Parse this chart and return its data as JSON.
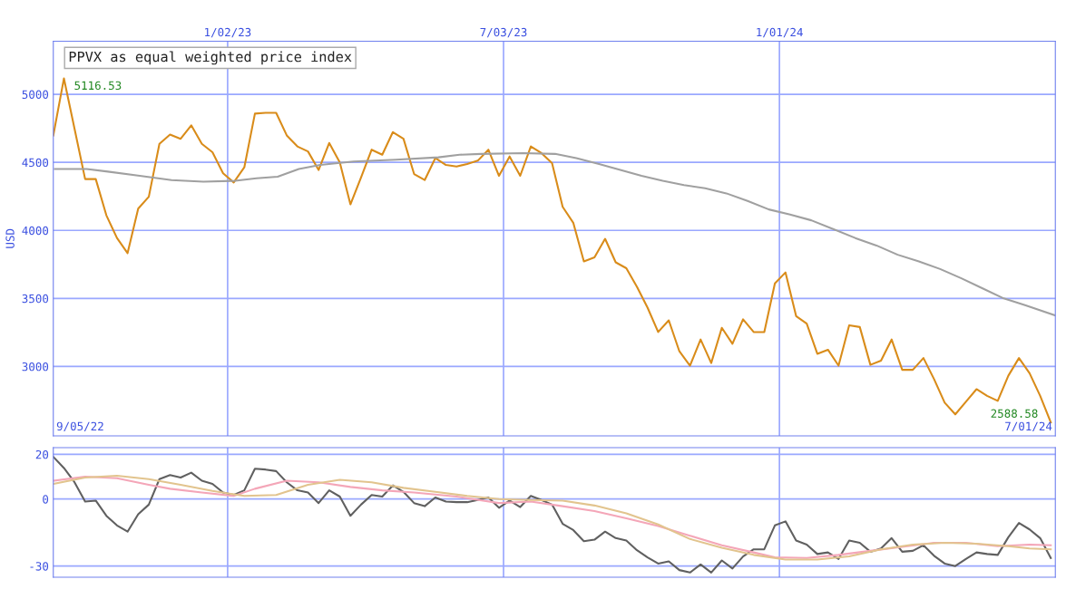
{
  "chart_data": [
    {
      "type": "line",
      "title": "PPVX as equal weighted price index",
      "ylabel": "USD",
      "xlim": [
        "2022-09-09",
        "2024-07-01"
      ],
      "ylim": [
        2490,
        5390
      ],
      "xticks": [
        {
          "value": "2023-01-02",
          "label": "1/02/23"
        },
        {
          "value": "2023-07-03",
          "label": "7/03/23"
        },
        {
          "value": "2024-01-01",
          "label": "1/01/24"
        }
      ],
      "yticks": [
        3000,
        3500,
        4000,
        4500,
        5000
      ],
      "grid": true,
      "annotations": [
        "9/05/22",
        "7/01/24",
        {
          "text": "5116.53",
          "x": "2022-09-16",
          "y": 5116.53
        },
        {
          "text": "2588.58",
          "x": "2024-06-28",
          "y": 2588.58
        }
      ],
      "series": [
        {
          "color": "#d98c1a",
          "x": [
            "2022-09-09",
            "2022-09-16",
            "2022-09-23",
            "2022-09-30",
            "2022-10-07",
            "2022-10-14",
            "2022-10-21",
            "2022-10-28",
            "2022-11-04",
            "2022-11-11",
            "2022-11-18",
            "2022-11-25",
            "2022-12-02",
            "2022-12-09",
            "2022-12-16",
            "2022-12-23",
            "2022-12-30",
            "2023-01-06",
            "2023-01-13",
            "2023-01-20",
            "2023-01-27",
            "2023-02-03",
            "2023-02-10",
            "2023-02-17",
            "2023-02-24",
            "2023-03-03",
            "2023-03-10",
            "2023-03-17",
            "2023-03-24",
            "2023-03-31",
            "2023-04-07",
            "2023-04-14",
            "2023-04-21",
            "2023-04-28",
            "2023-05-05",
            "2023-05-12",
            "2023-05-19",
            "2023-05-26",
            "2023-06-02",
            "2023-06-09",
            "2023-06-16",
            "2023-06-23",
            "2023-06-30",
            "2023-07-07",
            "2023-07-14",
            "2023-07-21",
            "2023-07-28",
            "2023-08-04",
            "2023-08-11",
            "2023-08-18",
            "2023-08-25",
            "2023-09-01",
            "2023-09-08",
            "2023-09-15",
            "2023-09-22",
            "2023-09-29",
            "2023-10-06",
            "2023-10-13",
            "2023-10-20",
            "2023-10-27",
            "2023-11-03",
            "2023-11-10",
            "2023-11-17",
            "2023-11-24",
            "2023-12-01",
            "2023-12-08",
            "2023-12-15",
            "2023-12-22",
            "2023-12-29",
            "2024-01-05",
            "2024-01-12",
            "2024-01-19",
            "2024-01-26",
            "2024-02-02",
            "2024-02-09",
            "2024-02-16",
            "2024-02-23",
            "2024-03-01",
            "2024-03-08",
            "2024-03-15",
            "2024-03-22",
            "2024-03-29",
            "2024-04-05",
            "2024-04-12",
            "2024-04-19",
            "2024-04-26",
            "2024-05-03",
            "2024-05-10",
            "2024-05-17",
            "2024-05-24",
            "2024-05-31",
            "2024-06-07",
            "2024-06-14",
            "2024-06-21",
            "2024-06-28"
          ],
          "values": [
            4698,
            5116.53,
            4747,
            4377,
            4377,
            4111,
            3944,
            3833,
            4160,
            4247,
            4636,
            4704,
            4673,
            4772,
            4636,
            4574,
            4420,
            4352,
            4463,
            4858,
            4864,
            4864,
            4698,
            4617,
            4580,
            4444,
            4642,
            4500,
            4191,
            4389,
            4593,
            4556,
            4722,
            4673,
            4414,
            4370,
            4531,
            4481,
            4469,
            4488,
            4512,
            4593,
            4401,
            4543,
            4401,
            4617,
            4568,
            4494,
            4173,
            4056,
            3772,
            3802,
            3938,
            3765,
            3722,
            3586,
            3432,
            3253,
            3339,
            3111,
            3006,
            3198,
            3025,
            3284,
            3167,
            3346,
            3253,
            3253,
            3611,
            3691,
            3370,
            3315,
            3093,
            3123,
            3006,
            3302,
            3290,
            3012,
            3043,
            3198,
            2975,
            2975,
            3062,
            2907,
            2734,
            2648,
            2741,
            2833,
            2784,
            2747,
            2932,
            3062,
            2950,
            2784,
            2588.58
          ]
        },
        {
          "color": "#a0a0a0",
          "x": [
            "2022-09-10",
            "2022-10-01",
            "2022-10-15",
            "2022-11-05",
            "2022-11-26",
            "2022-12-17",
            "2023-01-07",
            "2023-01-21",
            "2023-02-04",
            "2023-02-18",
            "2023-03-04",
            "2023-03-26",
            "2023-04-23",
            "2023-05-21",
            "2023-06-04",
            "2023-06-18",
            "2023-07-16",
            "2023-08-06",
            "2023-08-20",
            "2023-09-04",
            "2023-09-18",
            "2023-10-02",
            "2023-10-16",
            "2023-10-30",
            "2023-11-13",
            "2023-11-27",
            "2023-12-11",
            "2023-12-25",
            "2024-01-08",
            "2024-01-22",
            "2024-02-05",
            "2024-02-20",
            "2024-03-05",
            "2024-03-19",
            "2024-04-02",
            "2024-04-16",
            "2024-04-30",
            "2024-05-14",
            "2024-05-28",
            "2024-06-11",
            "2024-07-01"
          ],
          "values": [
            4451,
            4451,
            4432,
            4401,
            4370,
            4358,
            4364,
            4383,
            4395,
            4451,
            4481,
            4506,
            4519,
            4537,
            4556,
            4562,
            4568,
            4562,
            4531,
            4488,
            4444,
            4401,
            4364,
            4333,
            4309,
            4272,
            4216,
            4154,
            4117,
            4074,
            4012,
            3944,
            3889,
            3821,
            3772,
            3716,
            3648,
            3574,
            3500,
            3451,
            3375
          ]
        }
      ]
    },
    {
      "type": "line",
      "xlim": [
        "2022-09-09",
        "2024-07-01"
      ],
      "ylim": [
        -35,
        23
      ],
      "xticks": [
        {
          "value": "2023-01-02",
          "label": null
        },
        {
          "value": "2023-07-03",
          "label": null
        },
        {
          "value": "2024-01-01",
          "label": null
        }
      ],
      "yticks": [
        -30,
        0,
        20
      ],
      "tick_labels": "y",
      "grid": true,
      "series": [
        {
          "color": "#606060",
          "x": [
            "2022-09-09",
            "2022-09-16",
            "2022-09-23",
            "2022-09-30",
            "2022-10-07",
            "2022-10-14",
            "2022-10-21",
            "2022-10-28",
            "2022-11-04",
            "2022-11-11",
            "2022-11-18",
            "2022-11-25",
            "2022-12-02",
            "2022-12-09",
            "2022-12-16",
            "2022-12-23",
            "2022-12-30",
            "2023-01-06",
            "2023-01-13",
            "2023-01-20",
            "2023-01-27",
            "2023-02-03",
            "2023-02-10",
            "2023-02-17",
            "2023-02-24",
            "2023-03-03",
            "2023-03-10",
            "2023-03-17",
            "2023-03-24",
            "2023-03-31",
            "2023-04-07",
            "2023-04-14",
            "2023-04-21",
            "2023-04-28",
            "2023-05-05",
            "2023-05-12",
            "2023-05-19",
            "2023-05-26",
            "2023-06-02",
            "2023-06-09",
            "2023-06-16",
            "2023-06-23",
            "2023-06-30",
            "2023-07-07",
            "2023-07-14",
            "2023-07-21",
            "2023-07-28",
            "2023-08-04",
            "2023-08-11",
            "2023-08-18",
            "2023-08-25",
            "2023-09-01",
            "2023-09-08",
            "2023-09-15",
            "2023-09-22",
            "2023-09-29",
            "2023-10-06",
            "2023-10-13",
            "2023-10-20",
            "2023-10-27",
            "2023-11-03",
            "2023-11-10",
            "2023-11-17",
            "2023-11-24",
            "2023-12-01",
            "2023-12-08",
            "2023-12-15",
            "2023-12-22",
            "2023-12-29",
            "2024-01-05",
            "2024-01-12",
            "2024-01-19",
            "2024-01-26",
            "2024-02-02",
            "2024-02-09",
            "2024-02-16",
            "2024-02-23",
            "2024-03-01",
            "2024-03-08",
            "2024-03-15",
            "2024-03-22",
            "2024-03-29",
            "2024-04-05",
            "2024-04-12",
            "2024-04-19",
            "2024-04-26",
            "2024-05-03",
            "2024-05-10",
            "2024-05-17",
            "2024-05-24",
            "2024-05-31",
            "2024-06-07",
            "2024-06-14",
            "2024-06-21",
            "2024-06-28"
          ],
          "values": [
            18.9,
            13.9,
            7.5,
            -1.1,
            -0.7,
            -7.5,
            -11.8,
            -14.6,
            -6.8,
            -2.5,
            8.9,
            10.7,
            9.6,
            11.8,
            8.2,
            6.8,
            2.9,
            1.8,
            3.9,
            13.6,
            13.2,
            12.5,
            7.5,
            3.9,
            2.9,
            -1.8,
            3.9,
            1.1,
            -7.5,
            -2.5,
            1.8,
            1.1,
            6.1,
            3.2,
            -1.8,
            -3.2,
            0.7,
            -1.1,
            -1.4,
            -1.4,
            -0.4,
            0.7,
            -3.9,
            -0.7,
            -3.6,
            1.4,
            -0.4,
            -2.5,
            -11.1,
            -13.9,
            -18.9,
            -18.2,
            -14.6,
            -17.5,
            -18.6,
            -22.9,
            -26.1,
            -28.9,
            -27.9,
            -31.8,
            -32.9,
            -29.3,
            -32.9,
            -27.5,
            -31.1,
            -25.7,
            -22.5,
            -22.5,
            -11.8,
            -10.0,
            -18.6,
            -20.4,
            -24.6,
            -23.9,
            -26.8,
            -18.6,
            -19.6,
            -23.6,
            -22.1,
            -17.5,
            -23.6,
            -23.2,
            -20.7,
            -25.4,
            -28.9,
            -30.0,
            -26.8,
            -23.9,
            -24.6,
            -25.0,
            -17.1,
            -10.7,
            -13.6,
            -17.5,
            -26.4
          ]
        },
        {
          "color": "#f4a6b8",
          "x": [
            "2022-09-09",
            "2022-09-30",
            "2022-10-21",
            "2022-11-11",
            "2022-11-25",
            "2022-12-16",
            "2023-01-06",
            "2023-01-20",
            "2023-02-10",
            "2023-03-03",
            "2023-03-24",
            "2023-04-14",
            "2023-05-05",
            "2023-06-02",
            "2023-06-30",
            "2023-07-21",
            "2023-08-11",
            "2023-09-01",
            "2023-09-22",
            "2023-10-13",
            "2023-11-03",
            "2023-11-24",
            "2023-12-15",
            "2023-12-29",
            "2024-01-19",
            "2024-02-09",
            "2024-03-01",
            "2024-03-22",
            "2024-04-12",
            "2024-05-03",
            "2024-05-24",
            "2024-06-14",
            "2024-06-28"
          ],
          "values": [
            8.2,
            10.0,
            9.3,
            6.4,
            4.6,
            2.9,
            1.4,
            4.6,
            8.2,
            7.5,
            5.4,
            3.9,
            2.9,
            1.1,
            -1.8,
            -1.1,
            -3.2,
            -5.4,
            -8.6,
            -12.1,
            -16.4,
            -20.7,
            -23.9,
            -26.1,
            -26.4,
            -25.0,
            -23.2,
            -21.4,
            -19.6,
            -19.6,
            -21.1,
            -20.4,
            -20.7
          ]
        },
        {
          "color": "#e2c48e",
          "x": [
            "2022-09-09",
            "2022-09-30",
            "2022-10-21",
            "2022-11-11",
            "2022-12-02",
            "2022-12-23",
            "2023-01-13",
            "2023-02-03",
            "2023-02-24",
            "2023-03-17",
            "2023-04-07",
            "2023-04-28",
            "2023-05-19",
            "2023-06-09",
            "2023-06-30",
            "2023-07-21",
            "2023-08-11",
            "2023-09-01",
            "2023-09-22",
            "2023-10-13",
            "2023-11-03",
            "2023-11-24",
            "2023-12-15",
            "2024-01-05",
            "2024-01-26",
            "2024-02-16",
            "2024-03-08",
            "2024-03-29",
            "2024-04-19",
            "2024-05-10",
            "2024-05-31",
            "2024-06-14",
            "2024-06-28"
          ],
          "values": [
            6.8,
            9.6,
            10.4,
            8.9,
            6.4,
            3.6,
            1.4,
            1.8,
            6.4,
            8.6,
            7.5,
            5.0,
            3.2,
            1.4,
            0,
            -0.4,
            -0.7,
            -2.9,
            -6.4,
            -11.4,
            -17.9,
            -21.8,
            -25.0,
            -27.1,
            -27.1,
            -25.7,
            -22.5,
            -20.4,
            -19.6,
            -20.0,
            -21.1,
            -22.1,
            -22.5
          ]
        }
      ]
    }
  ]
}
